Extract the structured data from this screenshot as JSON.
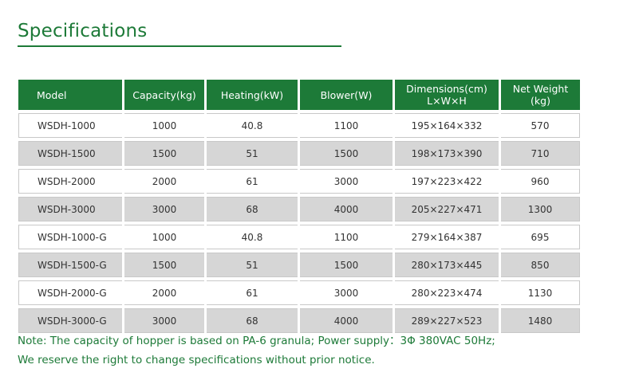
{
  "title": "Specifications",
  "table": {
    "headers": [
      {
        "line1": "Model",
        "line2": ""
      },
      {
        "line1": "Capacity(kg)",
        "line2": ""
      },
      {
        "line1": "Heating(kW)",
        "line2": ""
      },
      {
        "line1": "Blower(W)",
        "line2": ""
      },
      {
        "line1": "Dimensions(cm)",
        "line2": "L×W×H"
      },
      {
        "line1": "Net Weight",
        "line2": "(kg)"
      }
    ],
    "rows": [
      [
        "WSDH-1000",
        "1000",
        "40.8",
        "1100",
        "195×164×332",
        "570"
      ],
      [
        "WSDH-1500",
        "1500",
        "51",
        "1500",
        "198×173×390",
        "710"
      ],
      [
        "WSDH-2000",
        "2000",
        "61",
        "3000",
        "197×223×422",
        "960"
      ],
      [
        "WSDH-3000",
        "3000",
        "68",
        "4000",
        "205×227×471",
        "1300"
      ],
      [
        "WSDH-1000-G",
        "1000",
        "40.8",
        "1100",
        "279×164×387",
        "695"
      ],
      [
        "WSDH-1500-G",
        "1500",
        "51",
        "1500",
        "280×173×445",
        "850"
      ],
      [
        "WSDH-2000-G",
        "2000",
        "61",
        "3000",
        "280×223×474",
        "1130"
      ],
      [
        "WSDH-3000-G",
        "3000",
        "68",
        "4000",
        "289×227×523",
        "1480"
      ]
    ]
  },
  "note": {
    "line1": "Note: The capacity of hopper is based on PA-6 granula; Power supply：3Φ 380VAC 50Hz;",
    "line2": "We reserve the right to change specifications without prior notice."
  },
  "colors": {
    "accent": "#1d7a38",
    "row_shade": "#d6d6d6"
  }
}
